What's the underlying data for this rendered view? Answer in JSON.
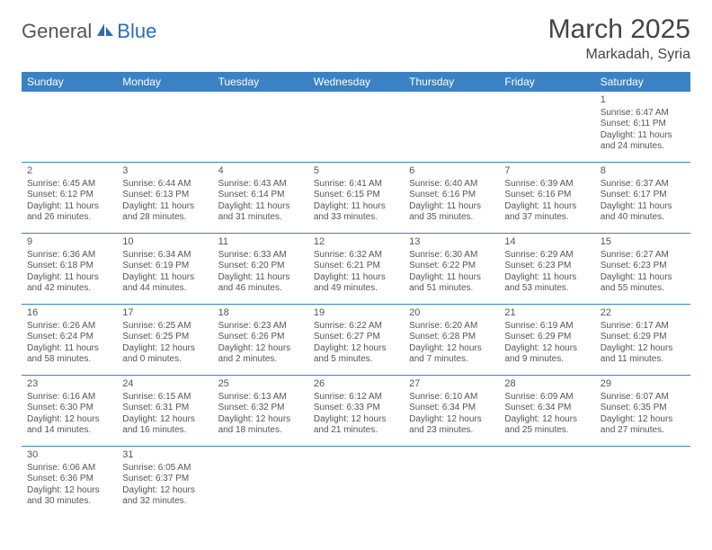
{
  "logo": {
    "part1": "General",
    "part2": "Blue"
  },
  "title": "March 2025",
  "location": "Markadah, Syria",
  "accent_color": "#3b82c4",
  "background_color": "#ffffff",
  "text_color": "#555555",
  "header_text_color": "#ffffff",
  "font_family": "Arial",
  "day_names": [
    "Sunday",
    "Monday",
    "Tuesday",
    "Wednesday",
    "Thursday",
    "Friday",
    "Saturday"
  ],
  "weeks": [
    [
      null,
      null,
      null,
      null,
      null,
      null,
      {
        "n": "1",
        "sunrise": "Sunrise: 6:47 AM",
        "sunset": "Sunset: 6:11 PM",
        "daylight": "Daylight: 11 hours and 24 minutes."
      }
    ],
    [
      {
        "n": "2",
        "sunrise": "Sunrise: 6:45 AM",
        "sunset": "Sunset: 6:12 PM",
        "daylight": "Daylight: 11 hours and 26 minutes."
      },
      {
        "n": "3",
        "sunrise": "Sunrise: 6:44 AM",
        "sunset": "Sunset: 6:13 PM",
        "daylight": "Daylight: 11 hours and 28 minutes."
      },
      {
        "n": "4",
        "sunrise": "Sunrise: 6:43 AM",
        "sunset": "Sunset: 6:14 PM",
        "daylight": "Daylight: 11 hours and 31 minutes."
      },
      {
        "n": "5",
        "sunrise": "Sunrise: 6:41 AM",
        "sunset": "Sunset: 6:15 PM",
        "daylight": "Daylight: 11 hours and 33 minutes."
      },
      {
        "n": "6",
        "sunrise": "Sunrise: 6:40 AM",
        "sunset": "Sunset: 6:16 PM",
        "daylight": "Daylight: 11 hours and 35 minutes."
      },
      {
        "n": "7",
        "sunrise": "Sunrise: 6:39 AM",
        "sunset": "Sunset: 6:16 PM",
        "daylight": "Daylight: 11 hours and 37 minutes."
      },
      {
        "n": "8",
        "sunrise": "Sunrise: 6:37 AM",
        "sunset": "Sunset: 6:17 PM",
        "daylight": "Daylight: 11 hours and 40 minutes."
      }
    ],
    [
      {
        "n": "9",
        "sunrise": "Sunrise: 6:36 AM",
        "sunset": "Sunset: 6:18 PM",
        "daylight": "Daylight: 11 hours and 42 minutes."
      },
      {
        "n": "10",
        "sunrise": "Sunrise: 6:34 AM",
        "sunset": "Sunset: 6:19 PM",
        "daylight": "Daylight: 11 hours and 44 minutes."
      },
      {
        "n": "11",
        "sunrise": "Sunrise: 6:33 AM",
        "sunset": "Sunset: 6:20 PM",
        "daylight": "Daylight: 11 hours and 46 minutes."
      },
      {
        "n": "12",
        "sunrise": "Sunrise: 6:32 AM",
        "sunset": "Sunset: 6:21 PM",
        "daylight": "Daylight: 11 hours and 49 minutes."
      },
      {
        "n": "13",
        "sunrise": "Sunrise: 6:30 AM",
        "sunset": "Sunset: 6:22 PM",
        "daylight": "Daylight: 11 hours and 51 minutes."
      },
      {
        "n": "14",
        "sunrise": "Sunrise: 6:29 AM",
        "sunset": "Sunset: 6:23 PM",
        "daylight": "Daylight: 11 hours and 53 minutes."
      },
      {
        "n": "15",
        "sunrise": "Sunrise: 6:27 AM",
        "sunset": "Sunset: 6:23 PM",
        "daylight": "Daylight: 11 hours and 55 minutes."
      }
    ],
    [
      {
        "n": "16",
        "sunrise": "Sunrise: 6:26 AM",
        "sunset": "Sunset: 6:24 PM",
        "daylight": "Daylight: 11 hours and 58 minutes."
      },
      {
        "n": "17",
        "sunrise": "Sunrise: 6:25 AM",
        "sunset": "Sunset: 6:25 PM",
        "daylight": "Daylight: 12 hours and 0 minutes."
      },
      {
        "n": "18",
        "sunrise": "Sunrise: 6:23 AM",
        "sunset": "Sunset: 6:26 PM",
        "daylight": "Daylight: 12 hours and 2 minutes."
      },
      {
        "n": "19",
        "sunrise": "Sunrise: 6:22 AM",
        "sunset": "Sunset: 6:27 PM",
        "daylight": "Daylight: 12 hours and 5 minutes."
      },
      {
        "n": "20",
        "sunrise": "Sunrise: 6:20 AM",
        "sunset": "Sunset: 6:28 PM",
        "daylight": "Daylight: 12 hours and 7 minutes."
      },
      {
        "n": "21",
        "sunrise": "Sunrise: 6:19 AM",
        "sunset": "Sunset: 6:29 PM",
        "daylight": "Daylight: 12 hours and 9 minutes."
      },
      {
        "n": "22",
        "sunrise": "Sunrise: 6:17 AM",
        "sunset": "Sunset: 6:29 PM",
        "daylight": "Daylight: 12 hours and 11 minutes."
      }
    ],
    [
      {
        "n": "23",
        "sunrise": "Sunrise: 6:16 AM",
        "sunset": "Sunset: 6:30 PM",
        "daylight": "Daylight: 12 hours and 14 minutes."
      },
      {
        "n": "24",
        "sunrise": "Sunrise: 6:15 AM",
        "sunset": "Sunset: 6:31 PM",
        "daylight": "Daylight: 12 hours and 16 minutes."
      },
      {
        "n": "25",
        "sunrise": "Sunrise: 6:13 AM",
        "sunset": "Sunset: 6:32 PM",
        "daylight": "Daylight: 12 hours and 18 minutes."
      },
      {
        "n": "26",
        "sunrise": "Sunrise: 6:12 AM",
        "sunset": "Sunset: 6:33 PM",
        "daylight": "Daylight: 12 hours and 21 minutes."
      },
      {
        "n": "27",
        "sunrise": "Sunrise: 6:10 AM",
        "sunset": "Sunset: 6:34 PM",
        "daylight": "Daylight: 12 hours and 23 minutes."
      },
      {
        "n": "28",
        "sunrise": "Sunrise: 6:09 AM",
        "sunset": "Sunset: 6:34 PM",
        "daylight": "Daylight: 12 hours and 25 minutes."
      },
      {
        "n": "29",
        "sunrise": "Sunrise: 6:07 AM",
        "sunset": "Sunset: 6:35 PM",
        "daylight": "Daylight: 12 hours and 27 minutes."
      }
    ],
    [
      {
        "n": "30",
        "sunrise": "Sunrise: 6:06 AM",
        "sunset": "Sunset: 6:36 PM",
        "daylight": "Daylight: 12 hours and 30 minutes."
      },
      {
        "n": "31",
        "sunrise": "Sunrise: 6:05 AM",
        "sunset": "Sunset: 6:37 PM",
        "daylight": "Daylight: 12 hours and 32 minutes."
      },
      null,
      null,
      null,
      null,
      null
    ]
  ]
}
